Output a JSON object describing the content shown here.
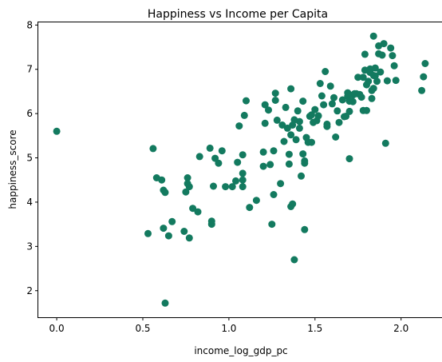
{
  "chart_data": {
    "type": "scatter",
    "title": "Happiness vs Income per Capita",
    "xlabel": "income_log_gdp_pc",
    "ylabel": "happiness_score",
    "xlim": [
      -0.107,
      2.247
    ],
    "ylim": [
      1.4,
      8.06
    ],
    "xticks": [
      0.0,
      0.5,
      1.0,
      1.5,
      2.0
    ],
    "xtick_labels": [
      "0.0",
      "0.5",
      "1.0",
      "1.5",
      "2.0"
    ],
    "yticks": [
      2,
      3,
      4,
      5,
      6,
      7,
      8
    ],
    "ytick_labels": [
      "2",
      "3",
      "4",
      "5",
      "6",
      "7",
      "8"
    ],
    "grid": false,
    "color": "#137a5f",
    "points": [
      [
        0.0,
        5.6
      ],
      [
        0.53,
        3.29
      ],
      [
        0.56,
        5.21
      ],
      [
        0.58,
        4.55
      ],
      [
        0.61,
        4.5
      ],
      [
        0.62,
        4.27
      ],
      [
        0.62,
        3.41
      ],
      [
        0.63,
        4.22
      ],
      [
        0.63,
        1.72
      ],
      [
        0.65,
        3.24
      ],
      [
        0.67,
        3.56
      ],
      [
        0.74,
        3.34
      ],
      [
        0.75,
        4.23
      ],
      [
        0.76,
        4.55
      ],
      [
        0.76,
        4.42
      ],
      [
        0.77,
        4.35
      ],
      [
        0.77,
        3.19
      ],
      [
        0.79,
        3.86
      ],
      [
        0.82,
        3.78
      ],
      [
        0.83,
        5.03
      ],
      [
        0.89,
        5.22
      ],
      [
        0.9,
        3.57
      ],
      [
        0.9,
        3.5
      ],
      [
        0.91,
        4.36
      ],
      [
        0.92,
        4.99
      ],
      [
        0.94,
        4.88
      ],
      [
        0.96,
        5.16
      ],
      [
        0.98,
        4.35
      ],
      [
        1.02,
        4.35
      ],
      [
        1.04,
        4.48
      ],
      [
        1.05,
        4.9
      ],
      [
        1.06,
        5.72
      ],
      [
        1.08,
        4.65
      ],
      [
        1.08,
        5.07
      ],
      [
        1.08,
        4.5
      ],
      [
        1.08,
        4.35
      ],
      [
        1.09,
        5.96
      ],
      [
        1.1,
        6.29
      ],
      [
        1.12,
        3.88
      ],
      [
        1.16,
        4.04
      ],
      [
        1.2,
        5.13
      ],
      [
        1.2,
        4.81
      ],
      [
        1.21,
        6.2
      ],
      [
        1.21,
        5.78
      ],
      [
        1.23,
        6.08
      ],
      [
        1.24,
        4.85
      ],
      [
        1.25,
        3.5
      ],
      [
        1.26,
        4.17
      ],
      [
        1.26,
        5.16
      ],
      [
        1.27,
        6.3
      ],
      [
        1.27,
        6.46
      ],
      [
        1.28,
        5.85
      ],
      [
        1.3,
        4.42
      ],
      [
        1.31,
        5.74
      ],
      [
        1.32,
        5.37
      ],
      [
        1.33,
        6.14
      ],
      [
        1.34,
        5.67
      ],
      [
        1.35,
        5.08
      ],
      [
        1.35,
        4.86
      ],
      [
        1.36,
        3.9
      ],
      [
        1.36,
        5.52
      ],
      [
        1.36,
        6.56
      ],
      [
        1.37,
        5.74
      ],
      [
        1.37,
        3.96
      ],
      [
        1.38,
        5.86
      ],
      [
        1.38,
        2.7
      ],
      [
        1.39,
        5.41
      ],
      [
        1.4,
        6.06
      ],
      [
        1.41,
        5.67
      ],
      [
        1.41,
        5.82
      ],
      [
        1.42,
        4.59
      ],
      [
        1.43,
        6.28
      ],
      [
        1.43,
        5.09
      ],
      [
        1.44,
        4.93
      ],
      [
        1.44,
        4.88
      ],
      [
        1.44,
        3.38
      ],
      [
        1.45,
        5.46
      ],
      [
        1.46,
        5.35
      ],
      [
        1.47,
        5.94
      ],
      [
        1.48,
        5.97
      ],
      [
        1.48,
        5.35
      ],
      [
        1.49,
        5.8
      ],
      [
        1.5,
        6.09
      ],
      [
        1.51,
        5.84
      ],
      [
        1.52,
        5.95
      ],
      [
        1.53,
        6.68
      ],
      [
        1.54,
        6.4
      ],
      [
        1.55,
        6.2
      ],
      [
        1.56,
        6.95
      ],
      [
        1.57,
        5.76
      ],
      [
        1.57,
        5.71
      ],
      [
        1.59,
        6.62
      ],
      [
        1.6,
        6.22
      ],
      [
        1.61,
        6.36
      ],
      [
        1.62,
        5.47
      ],
      [
        1.63,
        6.06
      ],
      [
        1.64,
        5.8
      ],
      [
        1.66,
        6.31
      ],
      [
        1.67,
        5.93
      ],
      [
        1.68,
        5.94
      ],
      [
        1.69,
        6.47
      ],
      [
        1.69,
        6.39
      ],
      [
        1.7,
        6.28
      ],
      [
        1.7,
        6.05
      ],
      [
        1.7,
        4.98
      ],
      [
        1.72,
        6.27
      ],
      [
        1.72,
        6.42
      ],
      [
        1.73,
        6.45
      ],
      [
        1.74,
        6.45
      ],
      [
        1.75,
        6.82
      ],
      [
        1.76,
        6.43
      ],
      [
        1.77,
        6.37
      ],
      [
        1.78,
        6.82
      ],
      [
        1.78,
        6.07
      ],
      [
        1.79,
        6.98
      ],
      [
        1.79,
        7.34
      ],
      [
        1.8,
        6.65
      ],
      [
        1.8,
        6.07
      ],
      [
        1.81,
        6.73
      ],
      [
        1.82,
        7.01
      ],
      [
        1.82,
        6.93
      ],
      [
        1.83,
        6.34
      ],
      [
        1.83,
        6.52
      ],
      [
        1.84,
        7.75
      ],
      [
        1.84,
        6.86
      ],
      [
        1.84,
        6.57
      ],
      [
        1.85,
        7.03
      ],
      [
        1.85,
        6.85
      ],
      [
        1.86,
        6.73
      ],
      [
        1.87,
        7.35
      ],
      [
        1.87,
        7.53
      ],
      [
        1.88,
        6.94
      ],
      [
        1.89,
        7.32
      ],
      [
        1.9,
        7.58
      ],
      [
        1.91,
        5.33
      ],
      [
        1.92,
        6.74
      ],
      [
        1.94,
        7.48
      ],
      [
        1.95,
        7.31
      ],
      [
        1.96,
        7.08
      ],
      [
        1.97,
        6.75
      ],
      [
        2.12,
        6.52
      ],
      [
        2.13,
        6.83
      ],
      [
        2.14,
        7.13
      ]
    ]
  }
}
